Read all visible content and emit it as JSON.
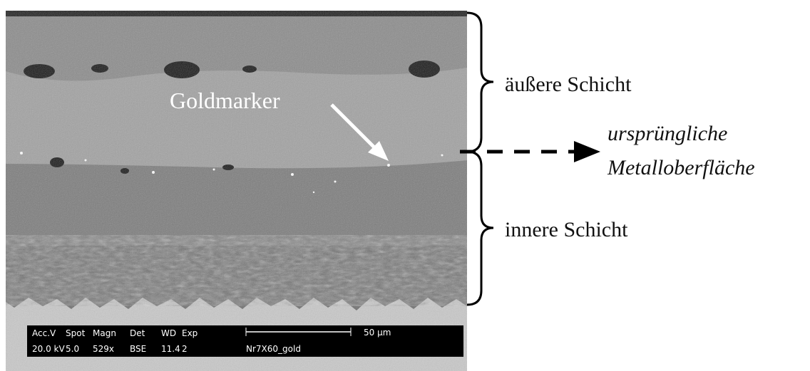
{
  "image": {
    "marker_label": "Goldmarker",
    "info_bar": {
      "row1": [
        "Acc.V",
        "Spot",
        "Magn",
        "Det",
        "WD",
        "Exp"
      ],
      "row2": [
        "20.0 kV",
        "5.0",
        "529x",
        "BSE",
        "11.4",
        "2"
      ],
      "scale": "50 µm",
      "sample": "Nr7X60_gold"
    }
  },
  "annotations": {
    "outer_layer": "äußere Schicht",
    "original_surface": [
      "ursprüngliche",
      "Metalloberfläche"
    ],
    "inner_layer": "innere Schicht"
  }
}
